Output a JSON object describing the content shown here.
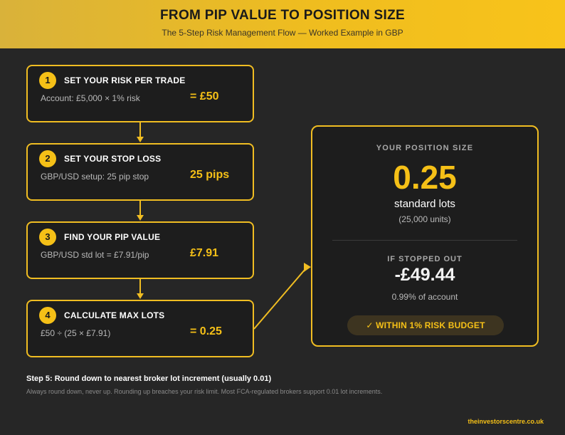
{
  "header": {
    "title": "FROM PIP VALUE TO POSITION SIZE",
    "subtitle": "The 5-Step Risk Management Flow — Worked Example in GBP"
  },
  "steps": [
    {
      "number": "1",
      "title": "SET YOUR RISK PER TRADE",
      "detail": "Account: £5,000 × 1% risk",
      "result": "= £50"
    },
    {
      "number": "2",
      "title": "SET YOUR STOP LOSS",
      "detail": "GBP/USD setup: 25 pip stop",
      "result": "25 pips"
    },
    {
      "number": "3",
      "title": "FIND YOUR PIP VALUE",
      "detail": "GBP/USD std lot = £7.91/pip",
      "result": "£7.91"
    },
    {
      "number": "4",
      "title": "CALCULATE MAX LOTS",
      "detail": "£50 ÷ (25 × £7.91)",
      "result": "= 0.25"
    }
  ],
  "result_panel": {
    "title": "YOUR POSITION SIZE",
    "value": "0.25",
    "unit": "standard lots",
    "units_detail": "(25,000 units)",
    "stop_label": "IF STOPPED OUT",
    "loss": "-£49.44",
    "loss_pct": "0.99% of account",
    "badge": "✓ WITHIN 1% RISK BUDGET"
  },
  "footer": {
    "step5_title": "Step 5: Round down to nearest broker lot increment (usually 0.01)",
    "step5_text": "Always round down, never up. Rounding up breaches your risk limit. Most FCA-regulated brokers support 0.01 lot increments.",
    "brand": "theinvestorscentre.co.uk"
  },
  "colors": {
    "accent": "#f5c017",
    "background": "#262626",
    "card": "#1d1d1d"
  }
}
